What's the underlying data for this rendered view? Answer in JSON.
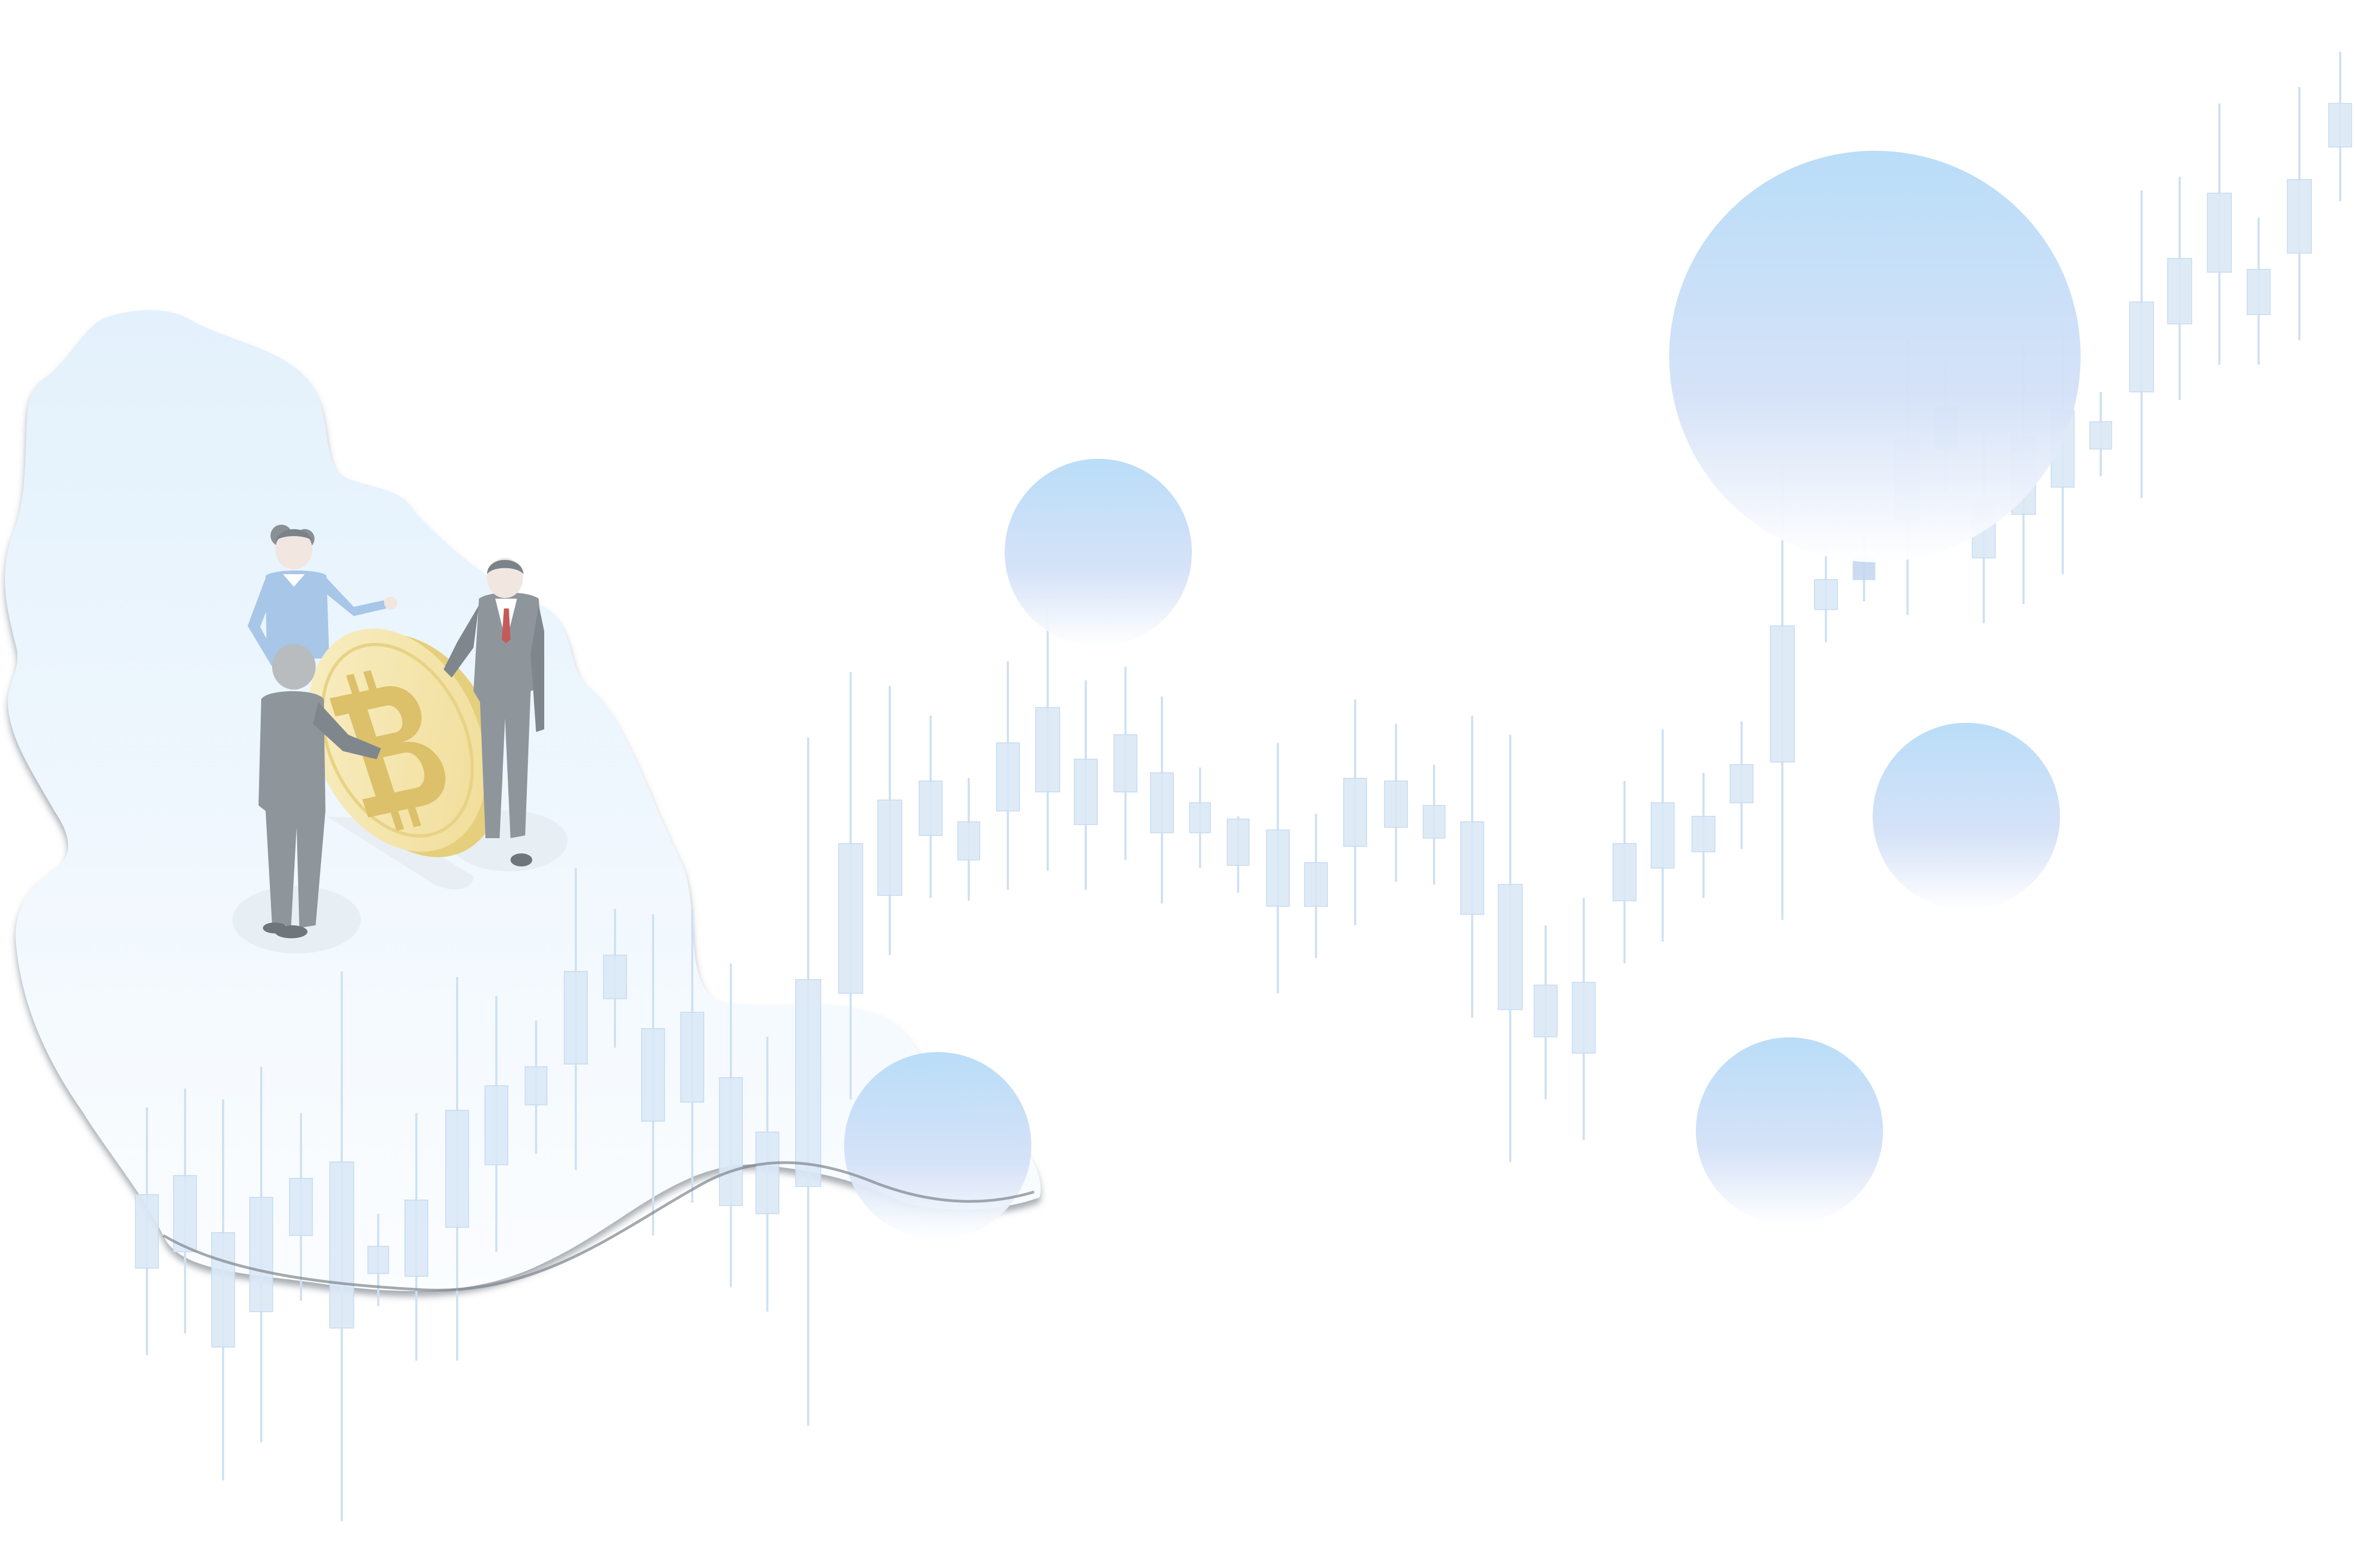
{
  "illustration": {
    "subject": "crypto-team-market-growth",
    "palette": {
      "background": "#ffffff",
      "candle_fill": "#dbe9f7",
      "candle_stroke": "#c9ddf1",
      "candle_accent": "#c6d8f0",
      "wick": "#cfe1f3",
      "bubble_top": "#b6dbf8",
      "bubble_bottom": "#ffffff",
      "blob_top": "#e3f1fc",
      "blob_bottom": "#fbfdff",
      "coin_face": "#f6e8b1",
      "coin_edge": "#e6cf7c",
      "coin_symbol": "#dcc06a",
      "suit_gray": "#8e969c",
      "shirt_blue": "#a8c6e8",
      "skin": "#f1e6e0"
    },
    "icons": [
      "bitcoin-icon"
    ],
    "figures": [
      "woman-pointing",
      "man-holding-coin",
      "man-in-suit"
    ],
    "chart_trend": "up"
  }
}
